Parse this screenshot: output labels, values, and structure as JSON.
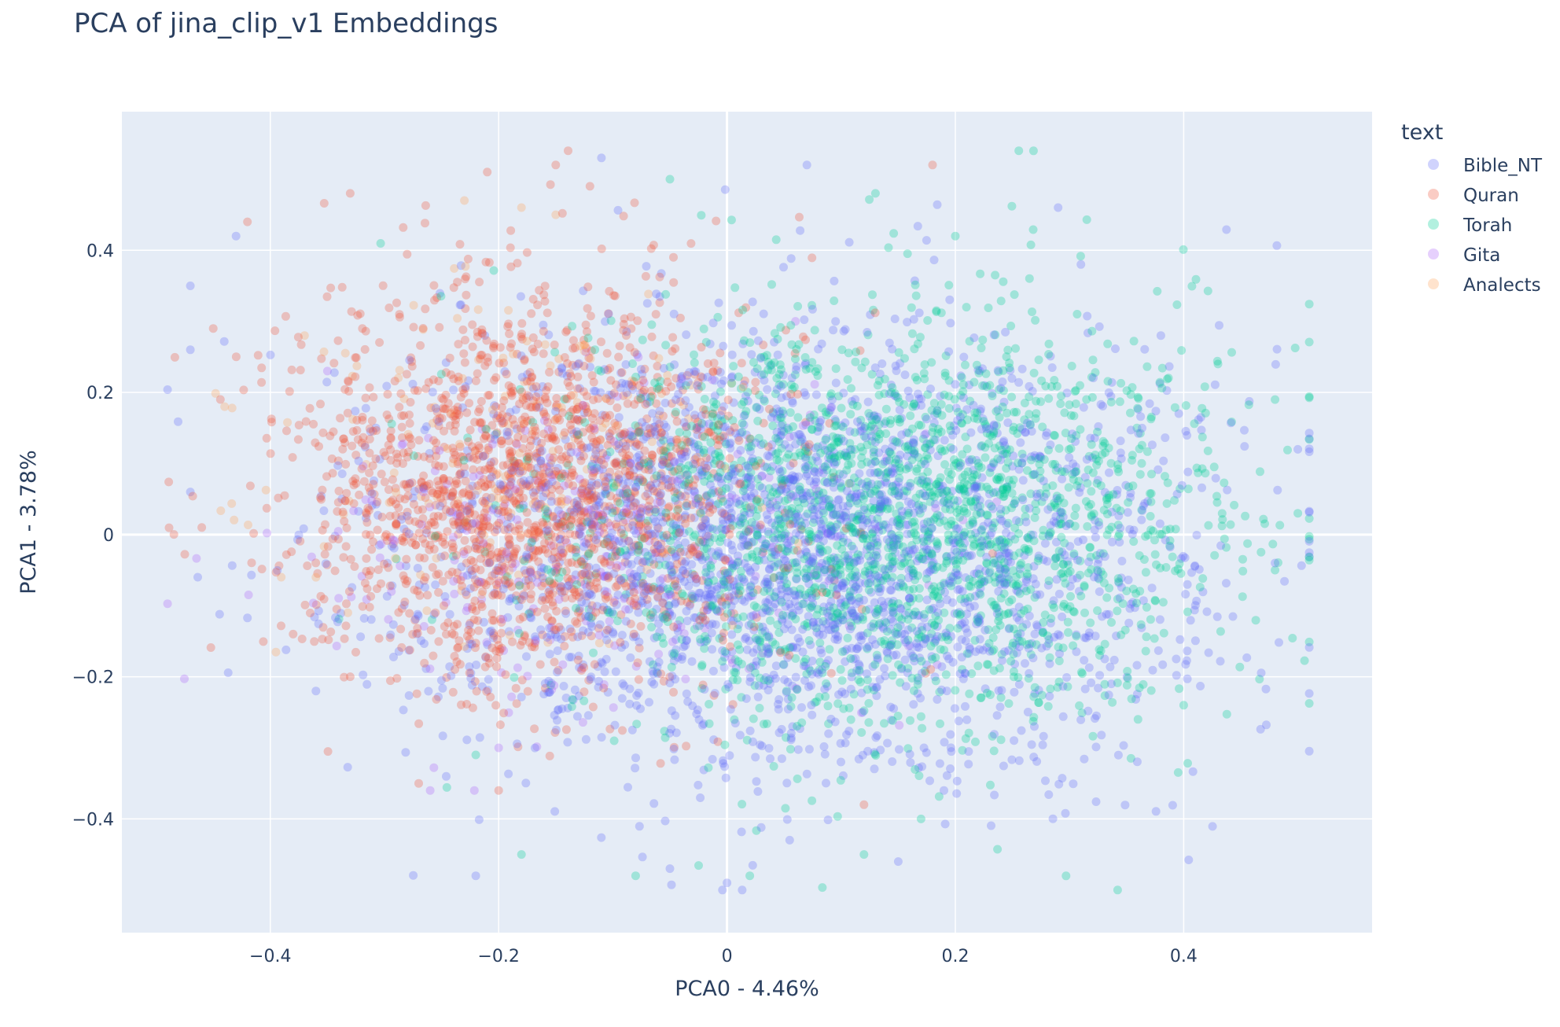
{
  "chart_data": {
    "type": "scatter",
    "title": "PCA of jina_clip_v1 Embeddings",
    "xlabel": "PCA0 - 4.46%",
    "ylabel": "PCA1 - 3.78%",
    "xlim": [
      -0.53,
      0.565
    ],
    "ylim": [
      -0.56,
      0.595
    ],
    "x_ticks": [
      -0.4,
      -0.2,
      0,
      0.2,
      0.4
    ],
    "x_tick_labels": [
      "−0.4",
      "−0.2",
      "0",
      "0.2",
      "0.4"
    ],
    "y_ticks": [
      -0.4,
      -0.2,
      0,
      0.2,
      0.4
    ],
    "y_tick_labels": [
      "−0.4",
      "−0.2",
      "0",
      "0.2",
      "0.4"
    ],
    "grid": true,
    "background_color": "#e5ecf6",
    "legend": {
      "title": "text",
      "position": "top-right"
    },
    "marker_opacity": 0.3,
    "series": [
      {
        "name": "Bible_NT",
        "color": "#636efa",
        "count": 2600,
        "center": [
          0.06,
          -0.02
        ],
        "spread": [
          0.2,
          0.18
        ],
        "points": [
          [
            -0.47,
            0.35
          ],
          [
            -0.47,
            0.26
          ],
          [
            -0.43,
            0.42
          ],
          [
            0.29,
            0.46
          ],
          [
            0.5,
            0.12
          ],
          [
            -0.47,
            0.06
          ],
          [
            -0.22,
            -0.48
          ],
          [
            -0.05,
            -0.47
          ],
          [
            0.15,
            -0.46
          ],
          [
            -0.11,
            0.53
          ],
          [
            0.07,
            0.52
          ],
          [
            0.31,
            0.38
          ],
          [
            0.38,
            0.28
          ],
          [
            0.48,
            -0.04
          ],
          [
            0.0,
            -0.49
          ],
          [
            -0.36,
            -0.22
          ],
          [
            0.19,
            -0.36
          ]
        ]
      },
      {
        "name": "Quran",
        "color": "#ef553b",
        "count": 1800,
        "center": [
          -0.17,
          0.06
        ],
        "spread": [
          0.12,
          0.16
        ],
        "points": [
          [
            -0.21,
            0.51
          ],
          [
            -0.15,
            0.52
          ],
          [
            -0.33,
            0.48
          ],
          [
            0.18,
            0.52
          ],
          [
            -0.42,
            0.44
          ],
          [
            -0.45,
            0.29
          ],
          [
            -0.46,
            0.01
          ],
          [
            -0.38,
            -0.14
          ],
          [
            -0.33,
            -0.2
          ],
          [
            -0.27,
            -0.35
          ],
          [
            -0.2,
            -0.36
          ],
          [
            0.12,
            -0.38
          ],
          [
            -0.12,
            0.49
          ]
        ]
      },
      {
        "name": "Torah",
        "color": "#00cc96",
        "count": 2100,
        "center": [
          0.14,
          0.02
        ],
        "spread": [
          0.17,
          0.17
        ],
        "points": [
          [
            0.13,
            0.48
          ],
          [
            0.2,
            0.42
          ],
          [
            0.43,
            0.24
          ],
          [
            0.48,
            0.19
          ],
          [
            0.5,
            0.03
          ],
          [
            0.48,
            -0.05
          ],
          [
            0.4,
            -0.24
          ],
          [
            0.36,
            -0.26
          ],
          [
            0.17,
            -0.4
          ],
          [
            0.12,
            -0.45
          ],
          [
            0.02,
            -0.48
          ],
          [
            -0.08,
            -0.48
          ],
          [
            -0.18,
            -0.45
          ],
          [
            -0.22,
            -0.31
          ],
          [
            -0.05,
            0.5
          ]
        ]
      },
      {
        "name": "Gita",
        "color": "#ab63fa",
        "count": 260,
        "center": [
          -0.12,
          -0.02
        ],
        "spread": [
          0.15,
          0.13
        ],
        "points": [
          [
            -0.26,
            -0.36
          ],
          [
            -0.35,
            0.23
          ],
          [
            0.06,
            0.3
          ],
          [
            -0.2,
            -0.3
          ]
        ]
      },
      {
        "name": "Analects",
        "color": "#ffa15a",
        "count": 160,
        "center": [
          -0.17,
          0.1
        ],
        "spread": [
          0.12,
          0.14
        ],
        "points": [
          [
            -0.18,
            0.46
          ],
          [
            -0.15,
            0.45
          ],
          [
            -0.37,
            0.28
          ],
          [
            -0.44,
            0.18
          ],
          [
            -0.36,
            -0.06
          ],
          [
            -0.23,
            0.47
          ]
        ]
      }
    ]
  }
}
